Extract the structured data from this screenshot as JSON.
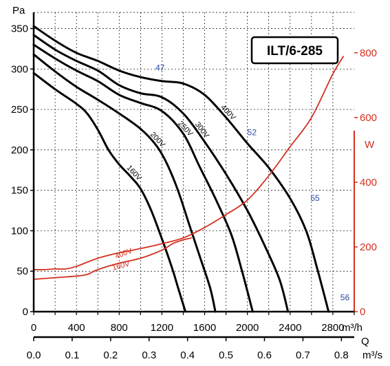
{
  "chart_data": {
    "type": "line",
    "title": "ILT/6-285",
    "left_axis": {
      "unit": "Pa",
      "ylim": [
        0,
        370
      ],
      "ticks": [
        0,
        50,
        100,
        150,
        200,
        250,
        300,
        350
      ]
    },
    "right_axis": {
      "unit": "W",
      "ylim": [
        0,
        925
      ],
      "ticks": [
        0,
        200,
        400,
        600,
        800
      ]
    },
    "x_axis": {
      "xlabel": "Q",
      "unit_primary": "m³/h",
      "unit_secondary": "m³/s",
      "xlim": [
        0,
        3000
      ],
      "ticks_primary": [
        0,
        400,
        800,
        1200,
        1600,
        2000,
        2400,
        2800
      ],
      "ticks_secondary": [
        "0.0",
        "0.1",
        "0.2",
        "0.3",
        "0.4",
        "0.5",
        "0.6",
        "0.7",
        "0.8"
      ],
      "ticks_secondary_values": [
        0,
        360,
        720,
        1080,
        1440,
        1800,
        2160,
        2520,
        2880
      ]
    },
    "grid": true,
    "pressure_series": [
      {
        "name": "160V",
        "points": [
          [
            0,
            295
          ],
          [
            200,
            275
          ],
          [
            400,
            257
          ],
          [
            500,
            245
          ],
          [
            600,
            225
          ],
          [
            700,
            200
          ],
          [
            800,
            182
          ],
          [
            900,
            168
          ],
          [
            1000,
            152
          ],
          [
            1100,
            125
          ],
          [
            1200,
            90
          ],
          [
            1300,
            52
          ],
          [
            1350,
            30
          ],
          [
            1420,
            0
          ]
        ]
      },
      {
        "name": "200V",
        "points": [
          [
            0,
            318
          ],
          [
            200,
            297
          ],
          [
            400,
            278
          ],
          [
            600,
            262
          ],
          [
            800,
            245
          ],
          [
            1000,
            226
          ],
          [
            1150,
            205
          ],
          [
            1250,
            182
          ],
          [
            1350,
            150
          ],
          [
            1450,
            110
          ],
          [
            1550,
            70
          ],
          [
            1650,
            30
          ],
          [
            1700,
            0
          ]
        ]
      },
      {
        "name": "250V",
        "points": [
          [
            0,
            330
          ],
          [
            200,
            313
          ],
          [
            400,
            298
          ],
          [
            600,
            285
          ],
          [
            800,
            268
          ],
          [
            1000,
            258
          ],
          [
            1200,
            248
          ],
          [
            1400,
            220
          ],
          [
            1550,
            180
          ],
          [
            1700,
            140
          ],
          [
            1850,
            95
          ],
          [
            1950,
            50
          ],
          [
            2050,
            0
          ]
        ]
      },
      {
        "name": "300V",
        "points": [
          [
            0,
            342
          ],
          [
            200,
            324
          ],
          [
            400,
            310
          ],
          [
            600,
            298
          ],
          [
            800,
            280
          ],
          [
            1000,
            270
          ],
          [
            1200,
            265
          ],
          [
            1400,
            245
          ],
          [
            1600,
            210
          ],
          [
            1800,
            170
          ],
          [
            2000,
            125
          ],
          [
            2150,
            85
          ],
          [
            2300,
            40
          ],
          [
            2380,
            0
          ]
        ]
      },
      {
        "name": "400V",
        "points": [
          [
            0,
            353
          ],
          [
            200,
            335
          ],
          [
            400,
            320
          ],
          [
            600,
            310
          ],
          [
            800,
            298
          ],
          [
            1000,
            290
          ],
          [
            1200,
            285
          ],
          [
            1400,
            282
          ],
          [
            1600,
            268
          ],
          [
            1800,
            240
          ],
          [
            2000,
            208
          ],
          [
            2200,
            178
          ],
          [
            2400,
            140
          ],
          [
            2550,
            100
          ],
          [
            2650,
            55
          ],
          [
            2760,
            0
          ]
        ]
      }
    ],
    "power_series": [
      {
        "name": "400V",
        "points": [
          [
            0,
            130
          ],
          [
            100,
            130
          ],
          [
            200,
            132
          ],
          [
            300,
            132
          ],
          [
            400,
            140
          ],
          [
            600,
            165
          ],
          [
            800,
            182
          ],
          [
            1000,
            195
          ],
          [
            1200,
            210
          ],
          [
            1400,
            228
          ],
          [
            1600,
            260
          ],
          [
            1800,
            300
          ],
          [
            2000,
            345
          ],
          [
            2200,
            420
          ],
          [
            2400,
            510
          ],
          [
            2600,
            600
          ],
          [
            2800,
            735
          ],
          [
            2900,
            790
          ]
        ]
      },
      {
        "name": "160V",
        "points": [
          [
            0,
            100
          ],
          [
            200,
            105
          ],
          [
            400,
            110
          ],
          [
            500,
            115
          ],
          [
            600,
            130
          ],
          [
            800,
            150
          ],
          [
            1000,
            165
          ],
          [
            1200,
            190
          ],
          [
            1300,
            210
          ],
          [
            1400,
            222
          ],
          [
            1480,
            228
          ]
        ]
      }
    ],
    "annotations": [
      {
        "text": "47",
        "x": 1140,
        "y": 298
      },
      {
        "text": "52",
        "x": 2000,
        "y": 218
      },
      {
        "text": "55",
        "x": 2590,
        "y": 137
      },
      {
        "text": "56",
        "x": 2870,
        "y": 14
      }
    ]
  }
}
